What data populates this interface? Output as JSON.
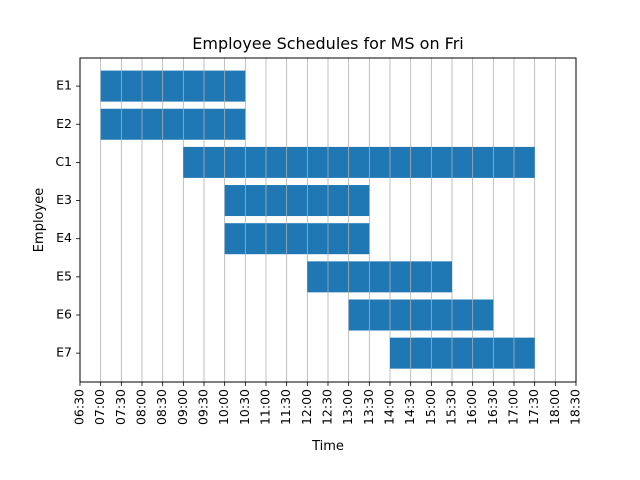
{
  "chart_data": {
    "type": "gantt",
    "title": "Employee Schedules for MS on Fri",
    "xlabel": "Time",
    "ylabel": "Employee",
    "x_range": [
      "06:30",
      "18:30"
    ],
    "x_ticks": [
      "06:30",
      "07:00",
      "07:30",
      "08:00",
      "08:30",
      "09:00",
      "09:30",
      "10:00",
      "10:30",
      "11:00",
      "11:30",
      "12:00",
      "12:30",
      "13:00",
      "13:30",
      "14:00",
      "14:30",
      "15:00",
      "15:30",
      "16:00",
      "16:30",
      "17:00",
      "17:30",
      "18:00",
      "18:30"
    ],
    "grid": "vertical",
    "bar_color": "#1f77b4",
    "bar_edge_color": "#b0b0b0",
    "series": [
      {
        "employee": "E1",
        "start": "07:00",
        "end": "10:30"
      },
      {
        "employee": "E2",
        "start": "07:00",
        "end": "10:30"
      },
      {
        "employee": "C1",
        "start": "09:00",
        "end": "17:30"
      },
      {
        "employee": "E3",
        "start": "10:00",
        "end": "13:30"
      },
      {
        "employee": "E4",
        "start": "10:00",
        "end": "13:30"
      },
      {
        "employee": "E5",
        "start": "12:00",
        "end": "15:30"
      },
      {
        "employee": "E6",
        "start": "13:00",
        "end": "16:30"
      },
      {
        "employee": "E7",
        "start": "14:00",
        "end": "17:30"
      }
    ]
  }
}
